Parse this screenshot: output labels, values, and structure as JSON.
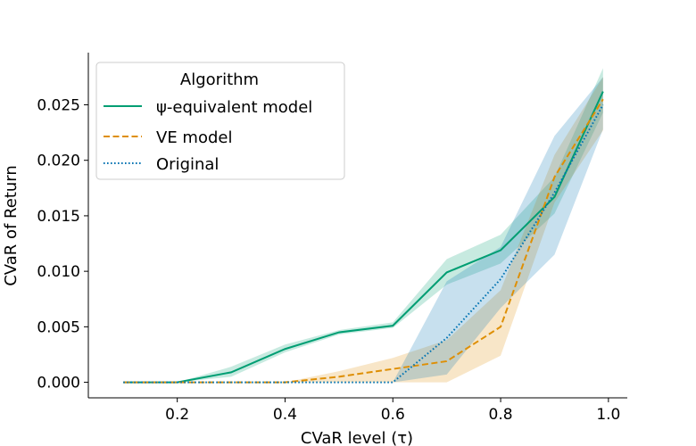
{
  "chart_data": {
    "type": "line",
    "title": "",
    "xlabel": "CVaR level (τ)",
    "ylabel": "CVaR of Return",
    "xlim": [
      0.035,
      1.035
    ],
    "ylim": [
      -0.0014,
      0.0297
    ],
    "xticks": [
      0.2,
      0.4,
      0.6,
      0.8,
      1.0
    ],
    "xtick_labels": [
      "0.2",
      "0.4",
      "0.6",
      "0.8",
      "1.0"
    ],
    "yticks": [
      0.0,
      0.005,
      0.01,
      0.015,
      0.02,
      0.025
    ],
    "ytick_labels": [
      "0.000",
      "0.005",
      "0.010",
      "0.015",
      "0.020",
      "0.025"
    ],
    "grid": false,
    "legend": {
      "title": "Algorithm",
      "placement": "top-left"
    },
    "x": [
      0.1,
      0.2,
      0.3,
      0.4,
      0.5,
      0.6,
      0.7,
      0.8,
      0.9,
      0.99
    ],
    "series": [
      {
        "name": "ψ-equivalent model",
        "color": "#009E73",
        "linestyle": "solid",
        "values": [
          0.0,
          0.0,
          0.0009,
          0.003,
          0.0045,
          0.0051,
          0.0099,
          0.0119,
          0.0167,
          0.0262
        ],
        "lower": [
          0.0,
          0.0,
          0.0005,
          0.0027,
          0.0043,
          0.0049,
          0.0088,
          0.0107,
          0.0152,
          0.0243
        ],
        "upper": [
          0.0,
          0.0,
          0.0014,
          0.0034,
          0.0047,
          0.0054,
          0.0111,
          0.0133,
          0.0185,
          0.0283
        ]
      },
      {
        "name": "VE model",
        "color": "#DE8F05",
        "linestyle": "dashed",
        "values": [
          0.0,
          0.0,
          0.0,
          0.0,
          0.0005,
          0.0012,
          0.0019,
          0.005,
          0.0185,
          0.0255
        ],
        "lower": [
          0.0,
          0.0,
          0.0,
          0.0,
          0.0,
          0.0,
          0.0,
          0.0024,
          0.0162,
          0.0227
        ],
        "upper": [
          0.0,
          0.0,
          0.0,
          0.0,
          0.001,
          0.0022,
          0.0038,
          0.0083,
          0.0205,
          0.0275
        ]
      },
      {
        "name": "Original",
        "color": "#0173B2",
        "linestyle": "dotted",
        "values": [
          0.0,
          0.0,
          0.0,
          0.0,
          0.0,
          0.0,
          0.004,
          0.0093,
          0.0171,
          0.025
        ],
        "lower": [
          0.0,
          0.0,
          0.0,
          0.0,
          0.0,
          0.0,
          0.0007,
          0.0067,
          0.0115,
          0.0228
        ],
        "upper": [
          0.0,
          0.0,
          0.0,
          0.0,
          0.0,
          0.0,
          0.0091,
          0.0122,
          0.0222,
          0.0275
        ]
      }
    ]
  }
}
